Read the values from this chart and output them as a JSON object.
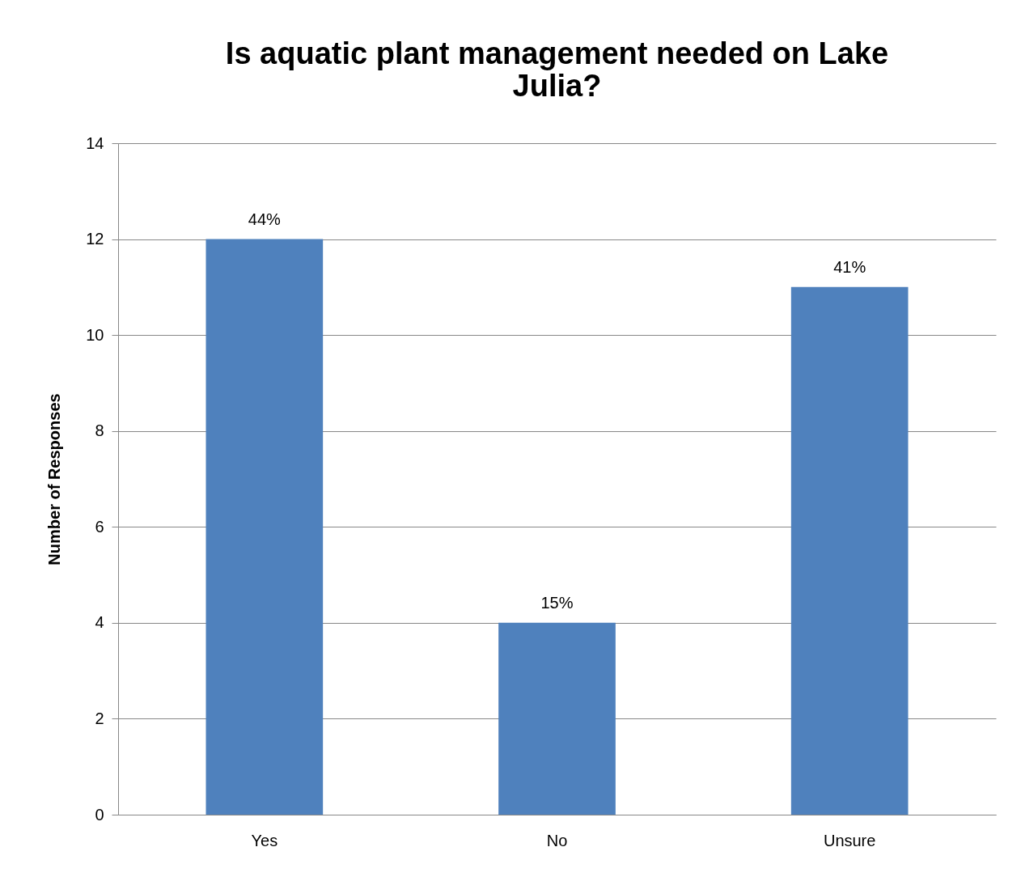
{
  "chart_data": {
    "type": "bar",
    "title": "Is aquatic plant management needed on Lake Julia?",
    "ylabel": "Number of Responses",
    "categories": [
      "Yes",
      "No",
      "Unsure"
    ],
    "values": [
      12,
      4,
      11
    ],
    "annotations": [
      {
        "text": "44%",
        "x": "Yes",
        "y": 12
      },
      {
        "text": "15%",
        "x": "No",
        "y": 4
      },
      {
        "text": "41%",
        "x": "Unsure",
        "y": 11
      }
    ],
    "color": "#4f81bd",
    "ylim": [
      0,
      14
    ],
    "yticks": [
      0,
      2,
      4,
      6,
      8,
      10,
      12,
      14
    ],
    "grid": "y"
  }
}
